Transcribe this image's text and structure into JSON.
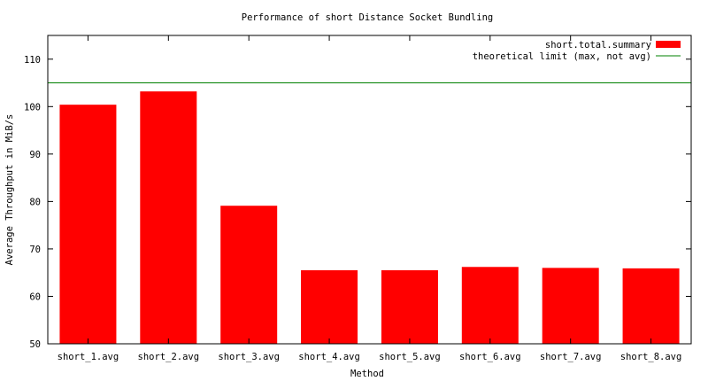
{
  "chart_data": {
    "type": "bar",
    "title": "Performance of short Distance Socket Bundling",
    "xlabel": "Method",
    "ylabel": "Average Throughput in MiB/s",
    "ylim": [
      50,
      115
    ],
    "yticks": [
      50,
      60,
      70,
      80,
      90,
      100,
      110
    ],
    "categories": [
      "short_1.avg",
      "short_2.avg",
      "short_3.avg",
      "short_4.avg",
      "short_5.avg",
      "short_6.avg",
      "short_7.avg",
      "short_8.avg"
    ],
    "series": [
      {
        "name": "short.total.summary",
        "color": "#ff0000",
        "values": [
          100.4,
          103.2,
          79.1,
          65.5,
          65.5,
          66.2,
          66.0,
          65.9
        ]
      }
    ],
    "reference_line": {
      "name": "theoretical limit (max, not avg)",
      "value": 105,
      "color": "#008000"
    },
    "legend_position": "top-right",
    "grid": false
  }
}
